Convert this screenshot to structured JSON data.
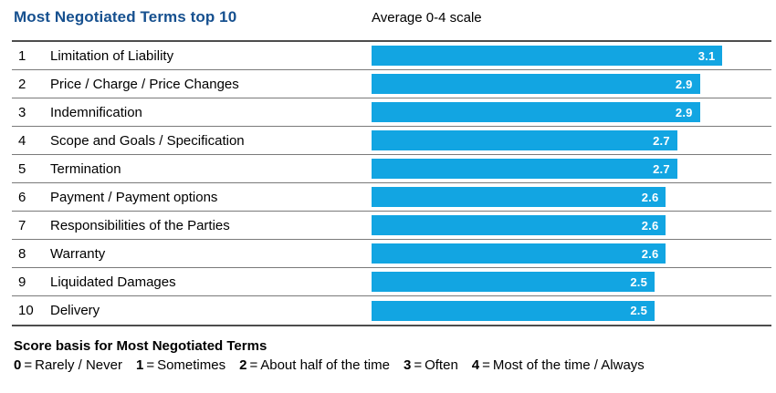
{
  "header": {
    "title": "Most Negotiated Terms top 10",
    "subtitle": "Average 0-4 scale"
  },
  "chart_data": {
    "type": "bar",
    "orientation": "horizontal",
    "title": "Most Negotiated Terms top 10",
    "subtitle": "Average 0-4 scale",
    "xlim": [
      0,
      4
    ],
    "grid": false,
    "legend_position": "none",
    "ranks": [
      "1",
      "2",
      "3",
      "4",
      "5",
      "6",
      "7",
      "8",
      "9",
      "10"
    ],
    "categories": [
      "Limitation of Liability",
      "Price / Charge / Price Changes",
      "Indemnification",
      "Scope and Goals / Specification",
      "Termination",
      "Payment / Payment options",
      "Responsibilities of the Parties",
      "Warranty",
      "Liquidated Damages",
      "Delivery"
    ],
    "values": [
      3.1,
      2.9,
      2.9,
      2.7,
      2.7,
      2.6,
      2.6,
      2.6,
      2.5,
      2.5
    ],
    "value_labels": [
      "3.1",
      "2.9",
      "2.9",
      "2.7",
      "2.7",
      "2.6",
      "2.6",
      "2.6",
      "2.5",
      "2.5"
    ]
  },
  "footer": {
    "heading": "Score basis for Most Negotiated Terms",
    "legend": [
      {
        "score": "0",
        "meaning": "Rarely / Never"
      },
      {
        "score": "1",
        "meaning": "Sometimes"
      },
      {
        "score": "2",
        "meaning": "About half of the time"
      },
      {
        "score": "3",
        "meaning": "Often"
      },
      {
        "score": "4",
        "meaning": "Most of the time / Always"
      }
    ]
  },
  "colors": {
    "bar_blue": "#12A5E2",
    "title_navy": "#16508F",
    "rule_dark": "#4D4D4D",
    "separator_gray": "#7A7A7A",
    "value_text": "#FFFFFF",
    "text_black": "#000000"
  }
}
